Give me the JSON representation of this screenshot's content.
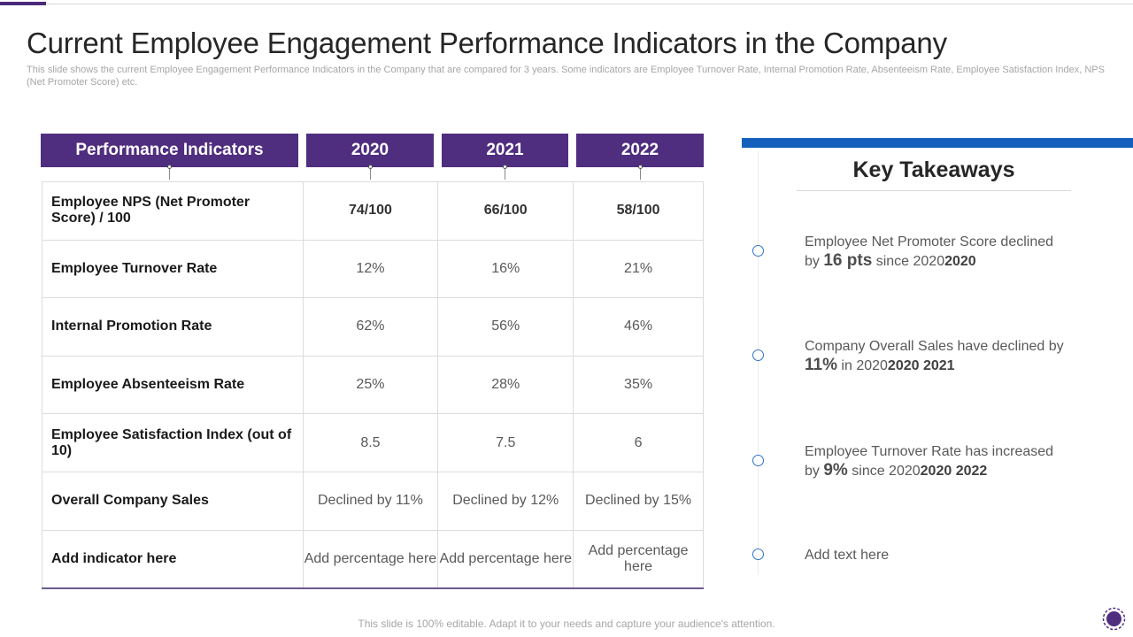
{
  "slide": {
    "title": "Current Employee Engagement Performance Indicators in the Company",
    "subtitle": "This slide shows the current Employee Engagement Performance Indicators in the Company that are compared for 3 years. Some indicators are Employee Turnover Rate, Internal Promotion Rate, Absenteeism Rate, Employee Satisfaction Index, NPS (Net Promoter Score) etc.",
    "footer": "This slide is 100% editable. Adapt it to your needs and capture your audience's attention."
  },
  "table": {
    "headers": [
      "Performance Indicators",
      "2020",
      "2021",
      "2022"
    ],
    "rows": [
      {
        "label": "Employee NPS (Net Promoter Score) / 100",
        "values": [
          "74/100",
          "66/100",
          "58/100"
        ]
      },
      {
        "label": "Employee Turnover Rate",
        "values": [
          "12%",
          "16%",
          "21%"
        ]
      },
      {
        "label": "Internal Promotion Rate",
        "values": [
          "62%",
          "56%",
          "46%"
        ]
      },
      {
        "label": "Employee Absenteeism Rate",
        "values": [
          "25%",
          "28%",
          "35%"
        ]
      },
      {
        "label": "Employee Satisfaction Index (out of 10)",
        "values": [
          "8.5",
          "7.5",
          "6"
        ]
      },
      {
        "label": "Overall Company Sales",
        "values": [
          "Declined by 11%",
          "Declined by 12%",
          "Declined by 15%"
        ]
      },
      {
        "label": "Add indicator here",
        "values": [
          "Add percentage here",
          "Add percentage here",
          "Add percentage here"
        ]
      }
    ]
  },
  "takeaways": {
    "title": "Key Takeaways",
    "items": [
      {
        "pre": "Employee Net Promoter Score declined by ",
        "big": "16 pts",
        "mid": " since  2020",
        "bold": "2020"
      },
      {
        "pre": "Company Overall Sales have declined by ",
        "big": "11%",
        "mid": " in 2020",
        "bold": "2020 2021"
      },
      {
        "pre": "Employee Turnover  Rate has increased by ",
        "big": "9%",
        "mid": " since 2020",
        "bold": "2020 2022"
      },
      {
        "pre": "Add text here",
        "big": "",
        "mid": "",
        "bold": ""
      }
    ]
  },
  "colors": {
    "header_purple": "#4f2d7f",
    "accent_blue": "#1560bd",
    "circle_blue": "#2e74c9"
  },
  "icons": {
    "logo": "purple-circle-logo-icon",
    "timeline_marker": "circle-outline-icon"
  }
}
